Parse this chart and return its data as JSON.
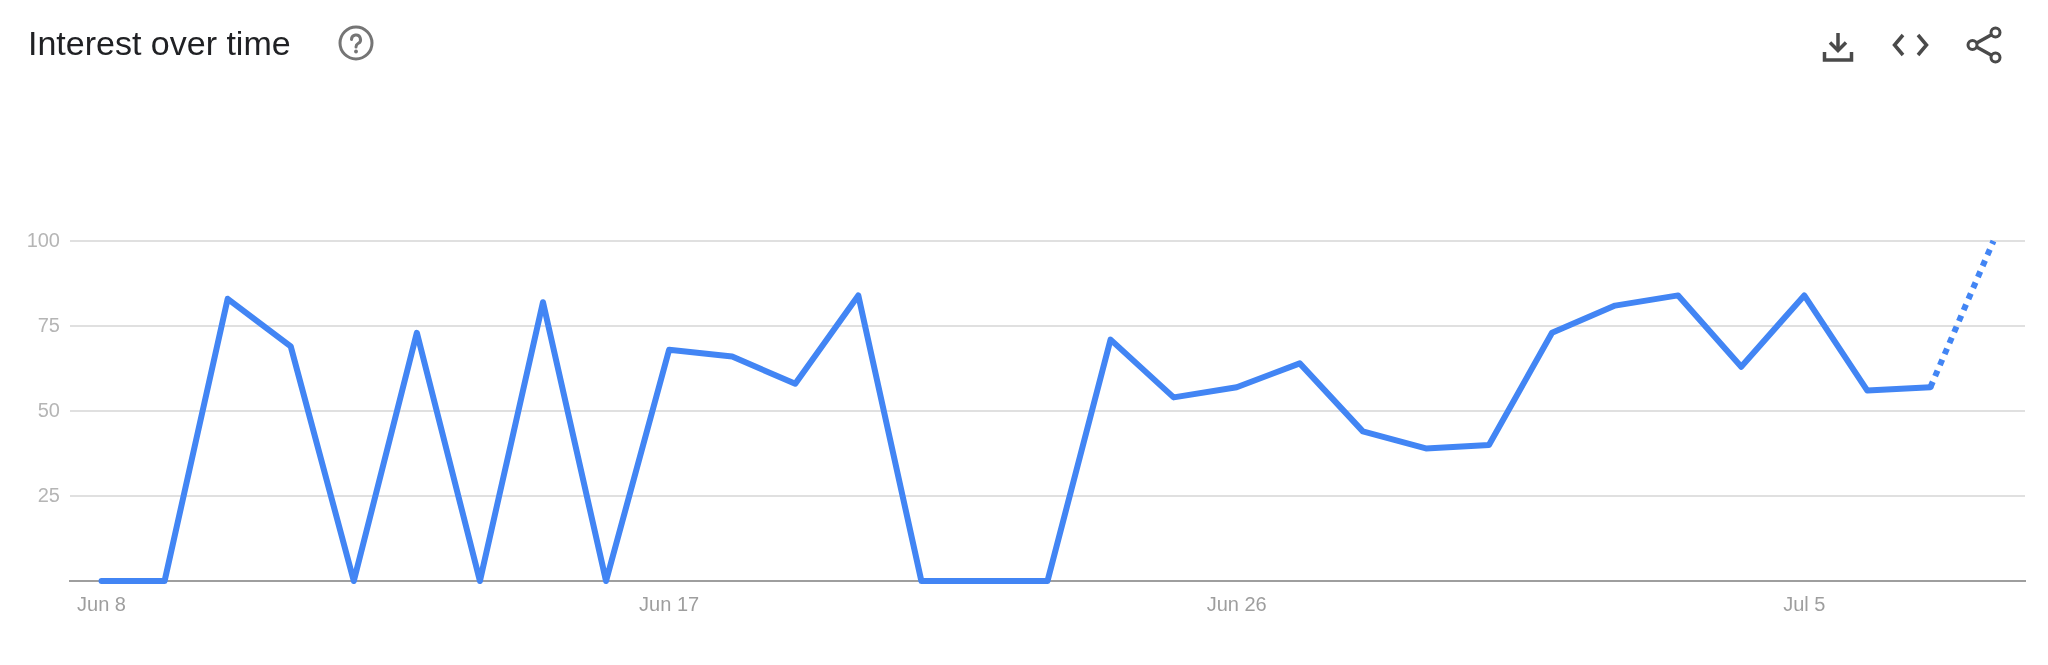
{
  "chart_data": {
    "type": "line",
    "title": "Interest over time",
    "categories": [
      "Jun 8",
      null,
      null,
      null,
      null,
      null,
      null,
      null,
      null,
      "Jun 17",
      null,
      null,
      null,
      null,
      null,
      null,
      null,
      null,
      "Jun 26",
      null,
      null,
      null,
      null,
      null,
      null,
      null,
      null,
      "Jul 5",
      null,
      null,
      null
    ],
    "series": [
      {
        "color": "#4285f4",
        "line_style": "solid",
        "values": [
          0,
          0,
          83,
          69,
          0,
          73,
          0,
          82,
          0,
          68,
          66,
          58,
          84,
          0,
          0,
          0,
          71,
          54,
          57,
          64,
          44,
          39,
          40,
          73,
          81,
          84,
          63,
          84,
          56,
          57,
          null
        ]
      },
      {
        "color": "#4285f4",
        "line_style": "dotted",
        "values": [
          null,
          null,
          null,
          null,
          null,
          null,
          null,
          null,
          null,
          null,
          null,
          null,
          null,
          null,
          null,
          null,
          null,
          null,
          null,
          null,
          null,
          null,
          null,
          null,
          null,
          null,
          null,
          null,
          null,
          57,
          100
        ]
      }
    ],
    "ylim": [
      0,
      100
    ],
    "yticks": [
      25,
      50,
      75,
      100
    ],
    "grid": "y",
    "marker": "none"
  }
}
